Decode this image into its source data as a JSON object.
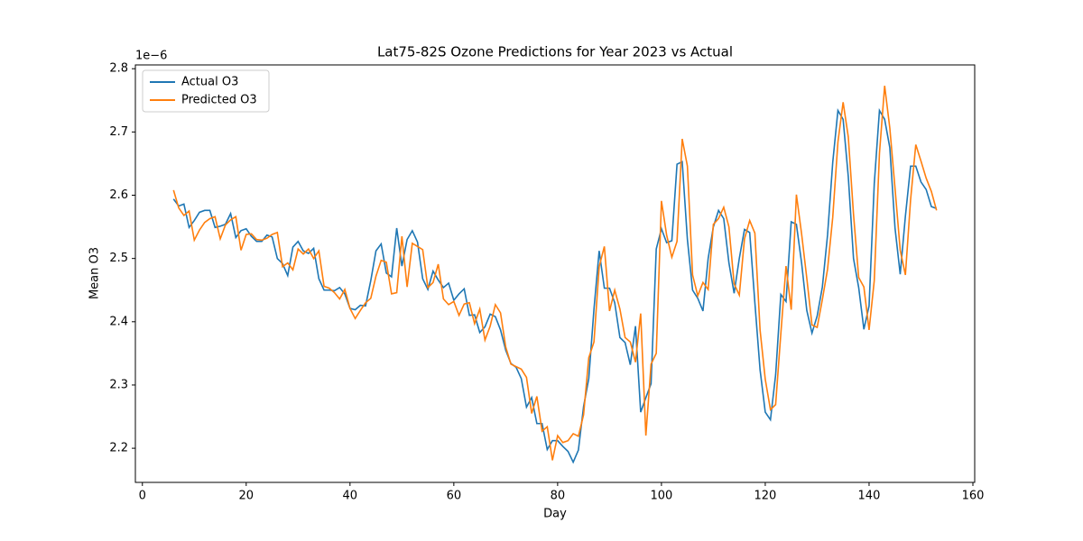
{
  "chart_data": {
    "type": "line",
    "title": "Lat75-82S Ozone Predictions for Year 2023 vs Actual",
    "x_label": "Day",
    "y_label": "Mean O3",
    "y_offset_label": "1e−6",
    "legend": "upper left",
    "grid": false,
    "xlim": [
      -1.35,
      160.35
    ],
    "xticks": [
      0,
      20,
      40,
      60,
      80,
      100,
      120,
      140,
      160
    ],
    "ylim": [
      2.146,
      2.806
    ],
    "yticks": [
      2.2,
      2.3,
      2.4,
      2.5,
      2.6,
      2.7,
      2.8
    ],
    "x": [
      6,
      7,
      8,
      9,
      10,
      11,
      12,
      13,
      14,
      15,
      16,
      17,
      18,
      19,
      20,
      21,
      22,
      23,
      24,
      25,
      26,
      27,
      28,
      29,
      30,
      31,
      32,
      33,
      34,
      35,
      36,
      37,
      38,
      39,
      40,
      41,
      42,
      43,
      44,
      45,
      46,
      47,
      48,
      49,
      50,
      51,
      52,
      53,
      54,
      55,
      56,
      57,
      58,
      59,
      60,
      61,
      62,
      63,
      64,
      65,
      66,
      67,
      68,
      69,
      70,
      71,
      72,
      73,
      74,
      75,
      76,
      77,
      78,
      79,
      80,
      81,
      82,
      83,
      84,
      85,
      86,
      87,
      88,
      89,
      90,
      91,
      92,
      93,
      94,
      95,
      96,
      97,
      98,
      99,
      100,
      101,
      102,
      103,
      104,
      105,
      106,
      107,
      108,
      109,
      110,
      111,
      112,
      113,
      114,
      115,
      116,
      117,
      118,
      119,
      120,
      121,
      122,
      123,
      124,
      125,
      126,
      127,
      128,
      129,
      130,
      131,
      132,
      133,
      134,
      135,
      136,
      137,
      138,
      139,
      140,
      141,
      142,
      143,
      144,
      145,
      146,
      147,
      148,
      149,
      150,
      151,
      152,
      153
    ],
    "series": [
      {
        "name": "Actual O3",
        "color": "#1f77b4",
        "values": [
          2.594,
          2.583,
          2.586,
          2.549,
          2.56,
          2.573,
          2.576,
          2.576,
          2.549,
          2.551,
          2.554,
          2.571,
          2.533,
          2.544,
          2.547,
          2.535,
          2.527,
          2.527,
          2.537,
          2.534,
          2.5,
          2.492,
          2.473,
          2.518,
          2.527,
          2.512,
          2.508,
          2.516,
          2.468,
          2.45,
          2.45,
          2.449,
          2.454,
          2.444,
          2.421,
          2.419,
          2.426,
          2.425,
          2.465,
          2.512,
          2.523,
          2.477,
          2.471,
          2.548,
          2.488,
          2.53,
          2.544,
          2.526,
          2.468,
          2.451,
          2.48,
          2.466,
          2.454,
          2.461,
          2.434,
          2.444,
          2.452,
          2.41,
          2.411,
          2.383,
          2.392,
          2.412,
          2.408,
          2.387,
          2.355,
          2.334,
          2.328,
          2.31,
          2.265,
          2.28,
          2.239,
          2.239,
          2.198,
          2.212,
          2.212,
          2.203,
          2.195,
          2.178,
          2.197,
          2.266,
          2.31,
          2.42,
          2.512,
          2.453,
          2.453,
          2.43,
          2.375,
          2.367,
          2.332,
          2.393,
          2.257,
          2.28,
          2.302,
          2.515,
          2.547,
          2.525,
          2.528,
          2.649,
          2.653,
          2.53,
          2.45,
          2.437,
          2.417,
          2.5,
          2.55,
          2.576,
          2.563,
          2.493,
          2.445,
          2.5,
          2.546,
          2.541,
          2.43,
          2.324,
          2.257,
          2.245,
          2.316,
          2.443,
          2.432,
          2.558,
          2.554,
          2.493,
          2.418,
          2.382,
          2.409,
          2.455,
          2.537,
          2.652,
          2.734,
          2.72,
          2.629,
          2.5,
          2.454,
          2.388,
          2.425,
          2.618,
          2.734,
          2.72,
          2.675,
          2.548,
          2.475,
          2.567,
          2.646,
          2.646,
          2.621,
          2.609,
          2.582,
          2.579
        ]
      },
      {
        "name": "Predicted O3",
        "color": "#ff7f0e",
        "values": [
          2.608,
          2.58,
          2.568,
          2.575,
          2.529,
          2.545,
          2.557,
          2.563,
          2.566,
          2.531,
          2.553,
          2.561,
          2.566,
          2.513,
          2.538,
          2.539,
          2.53,
          2.529,
          2.532,
          2.538,
          2.541,
          2.487,
          2.493,
          2.482,
          2.515,
          2.507,
          2.515,
          2.5,
          2.512,
          2.456,
          2.453,
          2.446,
          2.436,
          2.451,
          2.421,
          2.405,
          2.418,
          2.43,
          2.437,
          2.472,
          2.497,
          2.494,
          2.444,
          2.446,
          2.535,
          2.455,
          2.524,
          2.519,
          2.514,
          2.454,
          2.462,
          2.491,
          2.436,
          2.427,
          2.432,
          2.41,
          2.428,
          2.43,
          2.397,
          2.42,
          2.371,
          2.393,
          2.427,
          2.414,
          2.36,
          2.333,
          2.329,
          2.325,
          2.312,
          2.255,
          2.282,
          2.227,
          2.234,
          2.181,
          2.22,
          2.209,
          2.212,
          2.223,
          2.219,
          2.253,
          2.343,
          2.368,
          2.487,
          2.519,
          2.417,
          2.45,
          2.42,
          2.375,
          2.368,
          2.336,
          2.413,
          2.22,
          2.333,
          2.35,
          2.591,
          2.537,
          2.502,
          2.527,
          2.689,
          2.646,
          2.474,
          2.441,
          2.462,
          2.451,
          2.554,
          2.563,
          2.581,
          2.55,
          2.46,
          2.442,
          2.531,
          2.56,
          2.54,
          2.387,
          2.309,
          2.261,
          2.269,
          2.381,
          2.488,
          2.419,
          2.601,
          2.539,
          2.469,
          2.395,
          2.391,
          2.435,
          2.483,
          2.565,
          2.684,
          2.747,
          2.692,
          2.57,
          2.47,
          2.455,
          2.387,
          2.465,
          2.666,
          2.773,
          2.706,
          2.611,
          2.513,
          2.474,
          2.593,
          2.68,
          2.654,
          2.627,
          2.606,
          2.576
        ]
      }
    ]
  }
}
